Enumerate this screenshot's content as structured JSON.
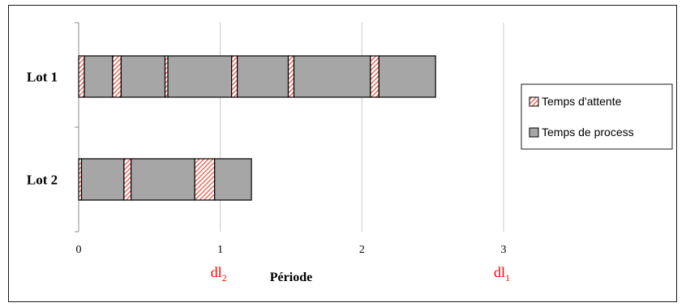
{
  "chart_data": {
    "type": "bar",
    "orientation": "horizontal",
    "stacked": true,
    "xlabel": "Période",
    "xlim": [
      0,
      3
    ],
    "xticks": [
      "0",
      "1",
      "2",
      "3"
    ],
    "grid": true,
    "legend_position": "right",
    "series": [
      {
        "name": "Temps d'attente",
        "color": "#e74c3c",
        "pattern": "diagonal-hatch"
      },
      {
        "name": "Temps de process",
        "color": "#a6a6a6",
        "pattern": "solid"
      }
    ],
    "categories": [
      "Lot 1",
      "Lot 2"
    ],
    "segments": [
      [
        {
          "series": 0,
          "value": 0.04
        },
        {
          "series": 1,
          "value": 0.2
        },
        {
          "series": 0,
          "value": 0.06
        },
        {
          "series": 1,
          "value": 0.31
        },
        {
          "series": 0,
          "value": 0.02
        },
        {
          "series": 1,
          "value": 0.45
        },
        {
          "series": 0,
          "value": 0.04
        },
        {
          "series": 1,
          "value": 0.36
        },
        {
          "series": 0,
          "value": 0.04
        },
        {
          "series": 1,
          "value": 0.54
        },
        {
          "series": 0,
          "value": 0.06
        },
        {
          "series": 1,
          "value": 0.4
        }
      ],
      [
        {
          "series": 0,
          "value": 0.02
        },
        {
          "series": 1,
          "value": 0.3
        },
        {
          "series": 0,
          "value": 0.05
        },
        {
          "series": 1,
          "value": 0.45
        },
        {
          "series": 0,
          "value": 0.14
        },
        {
          "series": 1,
          "value": 0.26
        }
      ]
    ],
    "deadlines": [
      {
        "base": "dl",
        "sub": "2",
        "value": 1,
        "color": "#ff0000"
      },
      {
        "base": "dl",
        "sub": "1",
        "value": 3,
        "color": "#ff0000"
      }
    ]
  }
}
